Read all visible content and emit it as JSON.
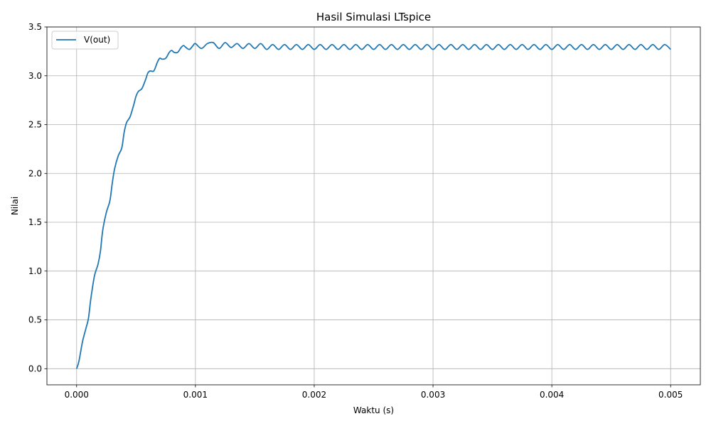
{
  "chart_data": {
    "type": "line",
    "title": "Hasil Simulasi LTspice",
    "xlabel": "Waktu (s)",
    "ylabel": "Nilai",
    "xlim": [
      -0.00025,
      0.00525
    ],
    "ylim": [
      -0.165,
      3.5
    ],
    "xticks": [
      0.0,
      0.001,
      0.002,
      0.003,
      0.004,
      0.005
    ],
    "xtick_labels": [
      "0.000",
      "0.001",
      "0.002",
      "0.003",
      "0.004",
      "0.005"
    ],
    "yticks": [
      0.0,
      0.5,
      1.0,
      1.5,
      2.0,
      2.5,
      3.0,
      3.5
    ],
    "ytick_labels": [
      "0.0",
      "0.5",
      "1.0",
      "1.5",
      "2.0",
      "2.5",
      "3.0",
      "3.5"
    ],
    "grid": true,
    "legend_position": "upper-left",
    "series": [
      {
        "name": "V(out)",
        "color": "#1f77b4",
        "x": [
          0.0,
          2e-05,
          5e-05,
          8e-05,
          0.0001,
          0.00012,
          0.00015,
          0.00018,
          0.0002,
          0.00022,
          0.00025,
          0.00028,
          0.0003,
          0.00032,
          0.00035,
          0.00038,
          0.0004,
          0.00042,
          0.00045,
          0.00048,
          0.0005,
          0.00052,
          0.00055,
          0.00058,
          0.0006,
          0.00062,
          0.00065,
          0.00068,
          0.0007,
          0.00072,
          0.00075,
          0.00078,
          0.0008,
          0.00082,
          0.00085,
          0.00088,
          0.0009,
          0.00092,
          0.00095,
          0.00098,
          0.001,
          0.00105,
          0.0011,
          0.00115,
          0.0012,
          0.00125,
          0.0013,
          0.00135,
          0.0014,
          0.00145,
          0.0015,
          0.00155,
          0.0016,
          0.00165,
          0.0017,
          0.00175,
          0.0018,
          0.00185,
          0.0019,
          0.00195,
          0.002,
          0.00205,
          0.0021,
          0.00215,
          0.0022,
          0.00225,
          0.0023,
          0.00235,
          0.0024,
          0.00245,
          0.0025,
          0.00255,
          0.0026,
          0.00265,
          0.0027,
          0.00275,
          0.0028,
          0.00285,
          0.0029,
          0.00295,
          0.003,
          0.00305,
          0.0031,
          0.00315,
          0.0032,
          0.00325,
          0.0033,
          0.00335,
          0.0034,
          0.00345,
          0.0035,
          0.00355,
          0.0036,
          0.00365,
          0.0037,
          0.00375,
          0.0038,
          0.00385,
          0.0039,
          0.00395,
          0.004,
          0.00405,
          0.0041,
          0.00415,
          0.0042,
          0.00425,
          0.0043,
          0.00435,
          0.0044,
          0.00445,
          0.0045,
          0.00455,
          0.0046,
          0.00465,
          0.0047,
          0.00475,
          0.0048,
          0.00485,
          0.0049,
          0.00495,
          0.005
        ],
        "y": [
          0.0,
          0.08,
          0.28,
          0.42,
          0.52,
          0.72,
          0.95,
          1.07,
          1.2,
          1.42,
          1.6,
          1.72,
          1.9,
          2.05,
          2.18,
          2.26,
          2.42,
          2.52,
          2.58,
          2.7,
          2.79,
          2.84,
          2.87,
          2.96,
          3.03,
          3.05,
          3.05,
          3.14,
          3.18,
          3.17,
          3.18,
          3.24,
          3.26,
          3.24,
          3.24,
          3.29,
          3.31,
          3.29,
          3.27,
          3.31,
          3.33,
          3.28,
          3.33,
          3.34,
          3.28,
          3.34,
          3.29,
          3.33,
          3.28,
          3.33,
          3.28,
          3.33,
          3.27,
          3.32,
          3.27,
          3.32,
          3.27,
          3.32,
          3.27,
          3.32,
          3.27,
          3.32,
          3.27,
          3.32,
          3.27,
          3.32,
          3.27,
          3.32,
          3.27,
          3.32,
          3.27,
          3.32,
          3.27,
          3.32,
          3.27,
          3.32,
          3.27,
          3.32,
          3.27,
          3.32,
          3.27,
          3.32,
          3.27,
          3.32,
          3.27,
          3.32,
          3.27,
          3.32,
          3.27,
          3.32,
          3.27,
          3.32,
          3.27,
          3.32,
          3.27,
          3.32,
          3.27,
          3.32,
          3.27,
          3.32,
          3.27,
          3.32,
          3.27,
          3.32,
          3.27,
          3.32,
          3.27,
          3.32,
          3.27,
          3.32,
          3.27,
          3.32,
          3.27,
          3.32,
          3.27,
          3.32,
          3.27,
          3.32,
          3.27,
          3.32,
          3.27
        ]
      }
    ]
  }
}
